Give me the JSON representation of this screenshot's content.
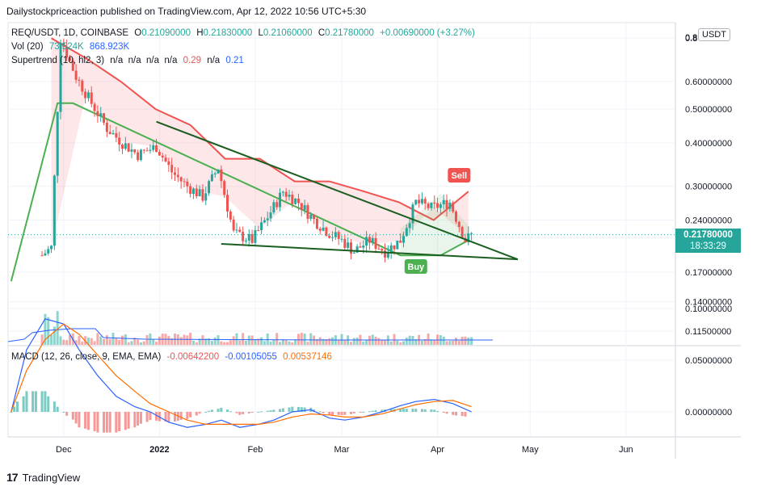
{
  "header": {
    "published_by": "Dailystockpriceaction published on TradingView.com, Apr 12, 2022 10:56 UTC+5:30"
  },
  "legend": {
    "symbol": "REQ/USDT, 1D, COINBASE",
    "open_label": "O",
    "open": "0.21090000",
    "high_label": "H",
    "high": "0.21830000",
    "low_label": "L",
    "low": "0.21060000",
    "close_label": "C",
    "close": "0.21780000",
    "change": "+0.00690000 (+3.27%)",
    "vol_label": "Vol (20)",
    "vol_1": "73.524K",
    "vol_2": "868.923K",
    "st_label": "Supertrend (10, hl2, 3)",
    "st_vals": "n/a  n/a  n/a  n/a",
    "st_red": "0.29",
    "st_na": "n/a",
    "st_green": "0.21",
    "macd_label": "MACD (12, 26, close, 9, EMA, EMA)",
    "macd_hist": "-0.00642200",
    "macd_line": "-0.00105055",
    "macd_signal": "0.00537146"
  },
  "currency_badge": "USDT",
  "last_price": {
    "price": "0.21780000",
    "countdown": "18:33:29"
  },
  "labels": {
    "sell": "Sell",
    "buy": "Buy"
  },
  "footer": {
    "brand": "TradingView",
    "logo": "17"
  },
  "colors": {
    "up": "#26a69a",
    "down": "#ef5350",
    "trend": "#1b5e20",
    "st_up": "#4caf50",
    "st_down": "#f05350",
    "macd": "#2962ff",
    "signal": "#ff6d00",
    "sell_bg": "#f05350",
    "buy_bg": "#4caf50"
  },
  "chart_data": [
    {
      "type": "line",
      "title": "REQ/USDT, 1D, COINBASE",
      "x_ticks": [
        "Dec",
        "2022",
        "Feb",
        "Mar",
        "Apr",
        "May",
        "Jun"
      ],
      "y_ticks": [
        "0.8",
        "0.60000000",
        "0.50000000",
        "0.40000000",
        "0.30000000",
        "0.24000000",
        "0.17000000",
        "0.14000000",
        "0.11500000"
      ],
      "y_scale": "log",
      "series": [
        {
          "name": "REQ/USDT",
          "x": [
            "2021-11-24",
            "2021-11-27",
            "2021-11-30",
            "2021-12-05",
            "2021-12-10",
            "2021-12-15",
            "2021-12-20",
            "2021-12-25",
            "2021-12-31",
            "2022-01-05",
            "2022-01-10",
            "2022-01-15",
            "2022-01-20",
            "2022-01-25",
            "2022-01-31",
            "2022-02-05",
            "2022-02-10",
            "2022-02-15",
            "2022-02-20",
            "2022-02-25",
            "2022-03-01",
            "2022-03-05",
            "2022-03-10",
            "2022-03-15",
            "2022-03-20",
            "2022-03-25",
            "2022-03-30",
            "2022-04-05",
            "2022-04-10",
            "2022-04-12"
          ],
          "values": [
            0.19,
            0.2,
            0.8,
            0.62,
            0.52,
            0.44,
            0.4,
            0.37,
            0.39,
            0.33,
            0.3,
            0.28,
            0.34,
            0.22,
            0.21,
            0.245,
            0.29,
            0.27,
            0.24,
            0.22,
            0.21,
            0.195,
            0.21,
            0.195,
            0.21,
            0.27,
            0.26,
            0.27,
            0.21,
            0.2178
          ]
        }
      ],
      "supertrend": {
        "down_segment_values": [
          0.8,
          0.7,
          0.6,
          0.5,
          0.45,
          0.36,
          0.36,
          0.31,
          0.31,
          0.29,
          0.27,
          0.24,
          0.29
        ],
        "up_segment_values": [
          0.16,
          0.52,
          0.52,
          0.19,
          0.19,
          0.21
        ]
      },
      "trendlines": [
        {
          "from": [
            "2021-12-31",
            0.46
          ],
          "to": [
            "2022-04-27",
            0.185
          ]
        },
        {
          "from": [
            "2022-01-21",
            0.205
          ],
          "to": [
            "2022-04-27",
            0.185
          ]
        }
      ],
      "signals": [
        {
          "label": "Buy",
          "x": "2022-03-25"
        },
        {
          "label": "Sell",
          "x": "2022-04-08"
        }
      ]
    },
    {
      "type": "line",
      "title": "MACD (12, 26, close, 9, EMA, EMA)",
      "y_ticks": [
        "0.10000000",
        "0.05000000",
        "0.00000000"
      ],
      "series": [
        {
          "name": "MACD",
          "values": [
            0.0,
            0.06,
            0.09,
            0.085,
            0.06,
            0.035,
            0.015,
            0.005,
            0.0,
            -0.01,
            -0.015,
            -0.012,
            -0.008,
            -0.015,
            -0.012,
            -0.008,
            0.0,
            0.002,
            -0.006,
            -0.008,
            -0.005,
            0.0,
            0.006,
            0.01,
            0.012,
            0.008,
            0.0
          ]
        },
        {
          "name": "Signal",
          "values": [
            0.0,
            0.04,
            0.07,
            0.085,
            0.075,
            0.055,
            0.035,
            0.02,
            0.008,
            0.0,
            -0.008,
            -0.012,
            -0.012,
            -0.012,
            -0.012,
            -0.01,
            -0.005,
            -0.002,
            -0.003,
            -0.005,
            -0.005,
            -0.002,
            0.003,
            0.007,
            0.01,
            0.011,
            0.005
          ]
        }
      ]
    }
  ]
}
